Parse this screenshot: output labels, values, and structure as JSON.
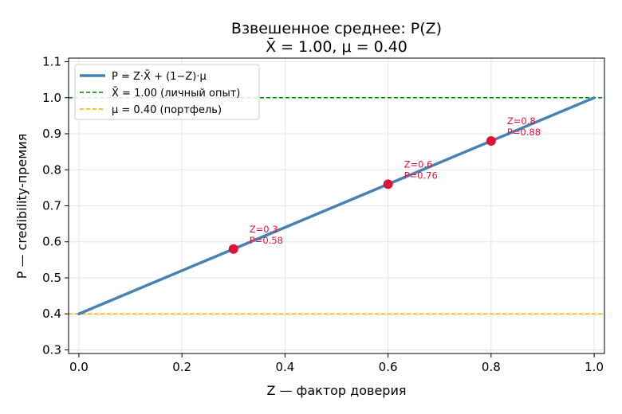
{
  "chart_data": {
    "type": "line",
    "title_line1": "Взвешенное среднее: P(Z)",
    "title_line2": "X̄ = 1.00, μ = 0.40",
    "xlabel": "Z — фактор доверия",
    "ylabel": "P — credibility-премия",
    "xlim": [
      -0.02,
      1.02
    ],
    "ylim": [
      0.29,
      1.11
    ],
    "xticks": [
      0.0,
      0.2,
      0.4,
      0.6,
      0.8,
      1.0
    ],
    "xtick_labels": [
      "0.0",
      "0.2",
      "0.4",
      "0.6",
      "0.8",
      "1.0"
    ],
    "yticks": [
      0.3,
      0.4,
      0.5,
      0.6,
      0.7,
      0.8,
      0.9,
      1.0,
      1.1
    ],
    "ytick_labels": [
      "0.3",
      "0.4",
      "0.5",
      "0.6",
      "0.7",
      "0.8",
      "0.9",
      "1.0",
      "1.1"
    ],
    "grid": true,
    "legend_position": "top-left",
    "series": [
      {
        "name": "P = Z·X̄ + (1−Z)·μ",
        "kind": "line",
        "color": "#4682b4",
        "x": [
          0.0,
          1.0
        ],
        "y": [
          0.4,
          1.0
        ]
      }
    ],
    "reference_lines": [
      {
        "name": "X̄ = 1.00 (личный опыт)",
        "y": 1.0,
        "color": "#008000",
        "style": "dashed"
      },
      {
        "name": "μ = 0.40 (портфель)",
        "y": 0.4,
        "color": "#ffa500",
        "style": "dashed"
      }
    ],
    "points": [
      {
        "x": 0.3,
        "y": 0.58,
        "label_z": "Z=0.3",
        "label_p": "P=0.58"
      },
      {
        "x": 0.6,
        "y": 0.76,
        "label_z": "Z=0.6",
        "label_p": "P=0.76"
      },
      {
        "x": 0.8,
        "y": 0.88,
        "label_z": "Z=0.8",
        "label_p": "P=0.88"
      }
    ],
    "point_color": "#dc143c"
  }
}
